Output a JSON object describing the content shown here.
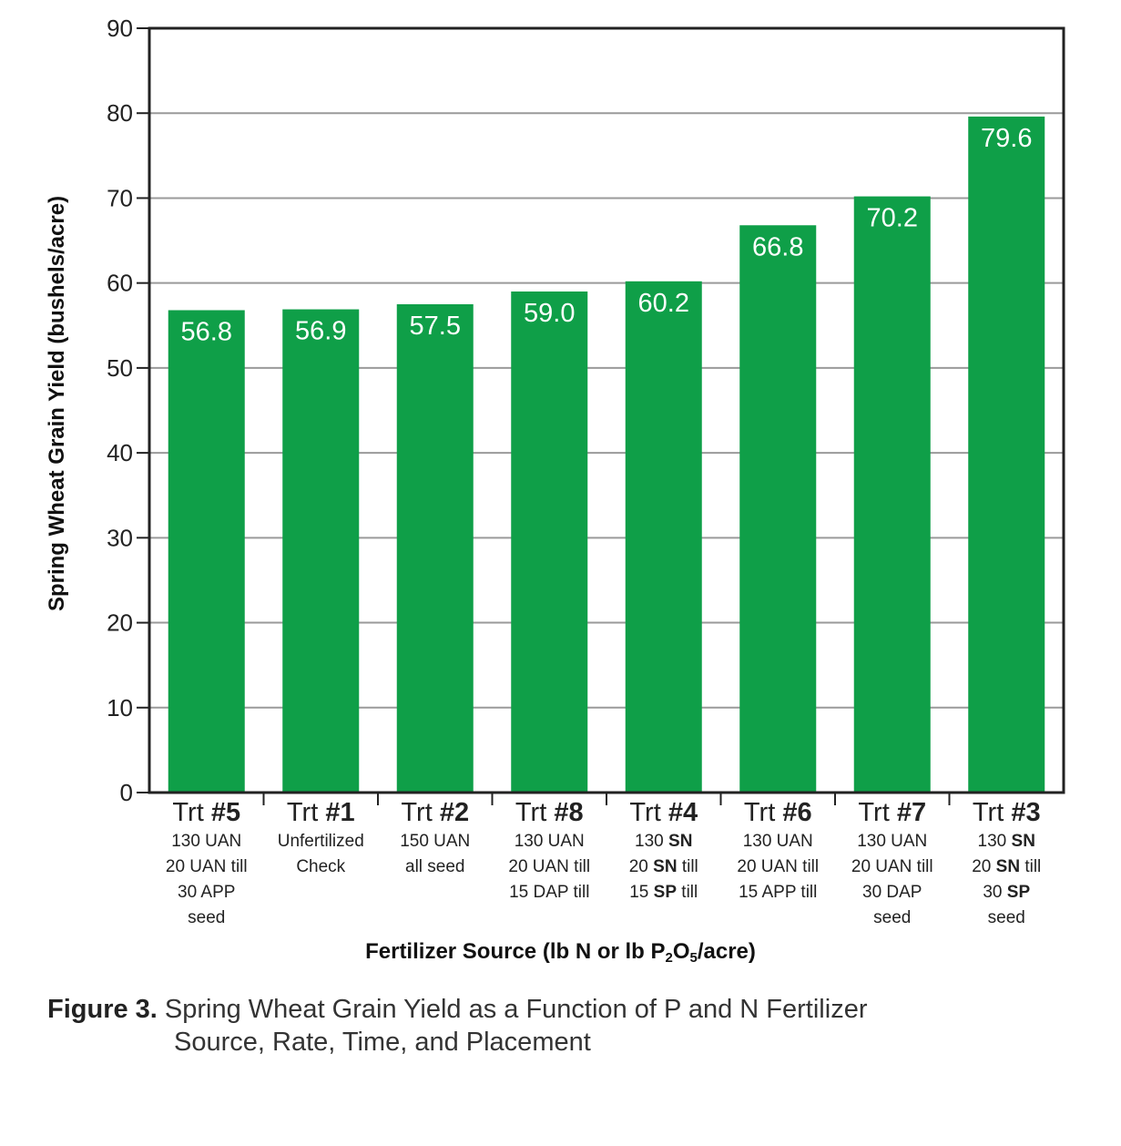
{
  "chart_data": {
    "type": "bar",
    "categories": [
      {
        "prefix": "Trt ",
        "num": "#5",
        "lines": [
          [
            {
              "t": "130 UAN"
            }
          ],
          [
            {
              "t": "20 UAN till"
            }
          ],
          [
            {
              "t": "30 APP"
            }
          ],
          [
            {
              "t": "seed"
            }
          ]
        ]
      },
      {
        "prefix": "Trt ",
        "num": "#1",
        "lines": [
          [
            {
              "t": "Unfertilized"
            }
          ],
          [
            {
              "t": "Check"
            }
          ]
        ]
      },
      {
        "prefix": "Trt ",
        "num": "#2",
        "lines": [
          [
            {
              "t": "150 UAN"
            }
          ],
          [
            {
              "t": "all seed"
            }
          ]
        ]
      },
      {
        "prefix": "Trt ",
        "num": "#8",
        "lines": [
          [
            {
              "t": "130 UAN"
            }
          ],
          [
            {
              "t": "20 UAN till"
            }
          ],
          [
            {
              "t": "15 DAP till"
            }
          ]
        ]
      },
      {
        "prefix": "Trt ",
        "num": "#4",
        "lines": [
          [
            {
              "t": "130 "
            },
            {
              "t": "SN",
              "b": true
            }
          ],
          [
            {
              "t": "20 "
            },
            {
              "t": "SN",
              "b": true
            },
            {
              "t": " till"
            }
          ],
          [
            {
              "t": "15 "
            },
            {
              "t": "SP",
              "b": true
            },
            {
              "t": " till"
            }
          ]
        ]
      },
      {
        "prefix": "Trt ",
        "num": "#6",
        "lines": [
          [
            {
              "t": "130 UAN"
            }
          ],
          [
            {
              "t": "20 UAN till"
            }
          ],
          [
            {
              "t": "15 APP till"
            }
          ]
        ]
      },
      {
        "prefix": "Trt ",
        "num": "#7",
        "lines": [
          [
            {
              "t": "130 UAN"
            }
          ],
          [
            {
              "t": "20 UAN till"
            }
          ],
          [
            {
              "t": "30 DAP"
            }
          ],
          [
            {
              "t": "seed"
            }
          ]
        ]
      },
      {
        "prefix": "Trt ",
        "num": "#3",
        "lines": [
          [
            {
              "t": "130 "
            },
            {
              "t": "SN",
              "b": true
            }
          ],
          [
            {
              "t": "20 "
            },
            {
              "t": "SN",
              "b": true
            },
            {
              "t": " till"
            }
          ],
          [
            {
              "t": "30 "
            },
            {
              "t": "SP",
              "b": true
            }
          ],
          [
            {
              "t": "seed"
            }
          ]
        ]
      }
    ],
    "values": [
      56.8,
      56.9,
      57.5,
      59.0,
      60.2,
      66.8,
      70.2,
      79.6
    ],
    "value_labels": [
      "56.8",
      "56.9",
      "57.5",
      "59.0",
      "60.2",
      "66.8",
      "70.2",
      "79.6"
    ],
    "ylabel": "Spring Wheat Grain Yield (bushels/acre)",
    "xlabel": {
      "before": "Fertilizer Source (lb N or lb P",
      "sub1": "2",
      "mid": "O",
      "sub2": "5",
      "after": "/acre)"
    },
    "ylim": [
      0,
      90
    ],
    "yticks": [
      0,
      10,
      20,
      30,
      40,
      50,
      60,
      70,
      80,
      90
    ],
    "grid": true,
    "legend": "none",
    "bar_color": "#0f9f48",
    "gridline_color": "#9a9a9a"
  },
  "caption": {
    "label": "Figure 3.",
    "line1": "Spring Wheat Grain Yield as a Function of P and N Fertilizer",
    "line2": "Source, Rate, Time, and Placement"
  }
}
